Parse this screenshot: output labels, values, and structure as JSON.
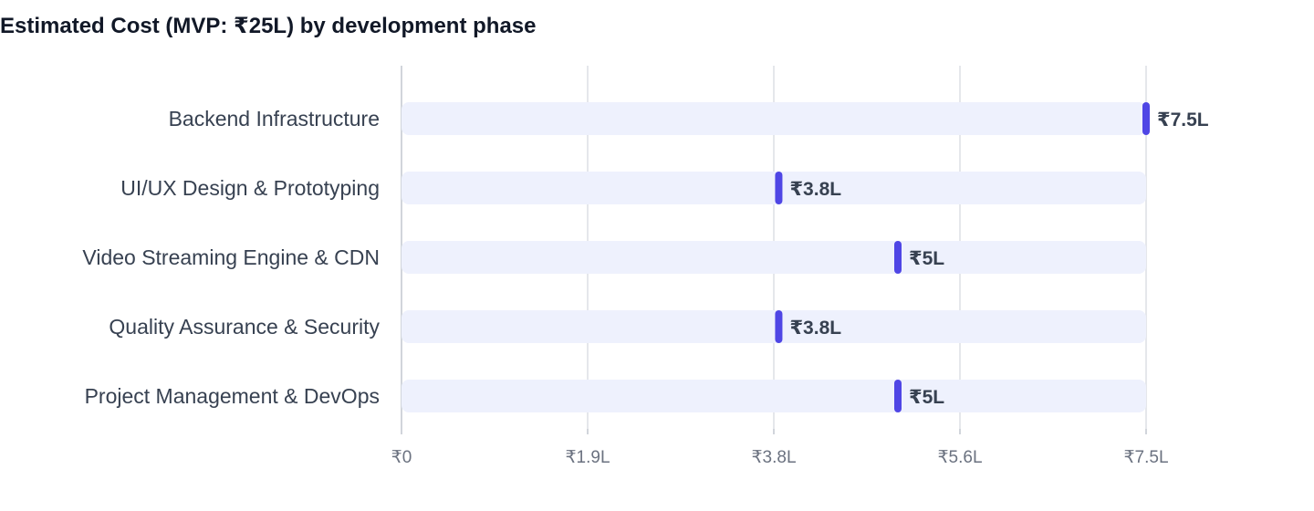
{
  "chart_data": {
    "type": "bar",
    "orientation": "horizontal",
    "title": "Estimated Cost (MVP: ₹25L) by development phase",
    "categories": [
      "Backend Infrastructure",
      "UI/UX Design & Prototyping",
      "Video Streaming Engine & CDN",
      "Quality Assurance & Security",
      "Project Management & DevOps"
    ],
    "values": [
      7.5,
      3.8,
      5,
      3.8,
      5
    ],
    "value_labels": [
      "₹7.5L",
      "₹3.8L",
      "₹5L",
      "₹3.8L",
      "₹5L"
    ],
    "unit": "L (lakh ₹)",
    "xlim": [
      0,
      7.5
    ],
    "x_ticks": [
      0,
      1.875,
      3.75,
      5.625,
      7.5
    ],
    "x_tick_labels": [
      "₹0",
      "₹1.9L",
      "₹3.8L",
      "₹5.6L",
      "₹7.5L"
    ],
    "xlabel": "",
    "ylabel": "",
    "grid": "vertical",
    "legend": "none",
    "colors": {
      "track": "#eef1fd",
      "marker": "#4f46e5",
      "grid": "#e5e7eb",
      "axis": "#d1d5db"
    }
  }
}
